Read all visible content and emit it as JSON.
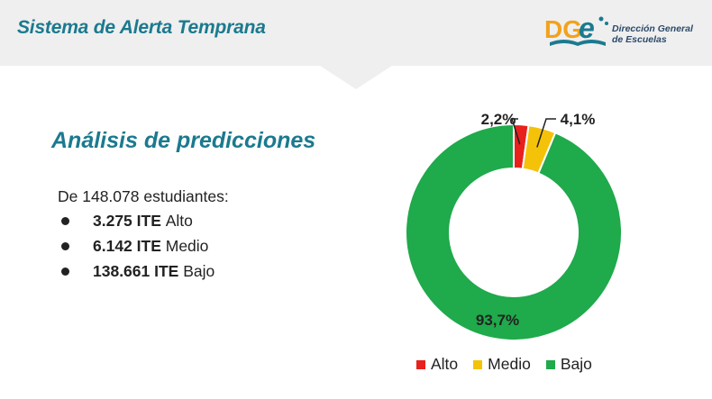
{
  "header": {
    "title": "Sistema de Alerta Temprana",
    "logo_mark": "DGe",
    "logo_line1": "Dirección General",
    "logo_line2": "de Escuelas"
  },
  "section": {
    "title": "Análisis de predicciones",
    "intro": "De 148.078 estudiantes:",
    "bullets": [
      {
        "count": "3.275 ITE",
        "level": "Alto"
      },
      {
        "count": "6.142 ITE",
        "level": "Medio"
      },
      {
        "count": "138.661 ITE",
        "level": "Bajo"
      }
    ]
  },
  "colors": {
    "alto": "#e8211d",
    "medio": "#f5c20a",
    "bajo": "#1faa4b",
    "accent": "#1b7a8f"
  },
  "chart_data": {
    "type": "pie",
    "style": "donut",
    "categories": [
      "Alto",
      "Medio",
      "Bajo"
    ],
    "values": [
      2.2,
      4.1,
      93.7
    ],
    "labels": [
      "2,2%",
      "4,1%",
      "93,7%"
    ],
    "colors": [
      "#e8211d",
      "#f5c20a",
      "#1faa4b"
    ],
    "title": "",
    "legend": "bottom"
  }
}
